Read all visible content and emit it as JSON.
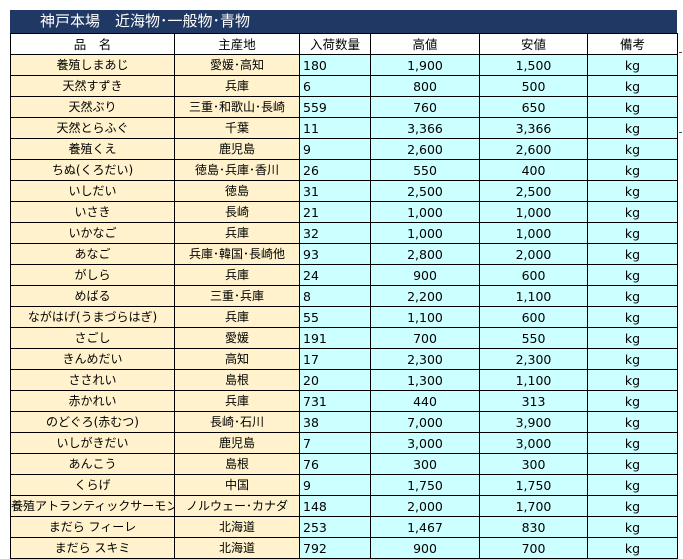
{
  "title": "神戸本場　近海物･一般物･青物",
  "headers": [
    "品　名",
    "主産地",
    "入荷数量",
    "高値",
    "安値",
    "備考"
  ],
  "rows": [
    [
      "養殖しまあじ",
      "愛媛･高知",
      "180",
      "1,900",
      "1,500",
      "kg"
    ],
    [
      "天然すずき",
      "兵庫",
      "6",
      "800",
      "500",
      "kg"
    ],
    [
      "天然ぶり",
      "三重･和歌山･長崎",
      "559",
      "760",
      "650",
      "kg"
    ],
    [
      "天然とらふぐ",
      "千葉",
      "11",
      "3,366",
      "3,366",
      "kg"
    ],
    [
      "養殖くえ",
      "鹿児島",
      "9",
      "2,600",
      "2,600",
      "kg"
    ],
    [
      "ちぬ(くろだい)",
      "徳島･兵庫･香川",
      "26",
      "550",
      "400",
      "kg"
    ],
    [
      "いしだい",
      "徳島",
      "31",
      "2,500",
      "2,500",
      "kg"
    ],
    [
      "いさき",
      "長崎",
      "21",
      "1,000",
      "1,000",
      "kg"
    ],
    [
      "いかなご",
      "兵庫",
      "32",
      "1,000",
      "1,000",
      "kg"
    ],
    [
      "あなご",
      "兵庫･韓国･長崎他",
      "93",
      "2,800",
      "2,000",
      "kg"
    ],
    [
      "がしら",
      "兵庫",
      "24",
      "900",
      "600",
      "kg"
    ],
    [
      "めばる",
      "三重･兵庫",
      "8",
      "2,200",
      "1,100",
      "kg"
    ],
    [
      "ながはげ(うまづらはぎ)",
      "兵庫",
      "55",
      "1,100",
      "600",
      "kg"
    ],
    [
      "さごし",
      "愛媛",
      "191",
      "700",
      "550",
      "kg"
    ],
    [
      "きんめだい",
      "高知",
      "17",
      "2,300",
      "2,300",
      "kg"
    ],
    [
      "さされい",
      "島根",
      "20",
      "1,300",
      "1,100",
      "kg"
    ],
    [
      "赤かれい",
      "兵庫",
      "731",
      "440",
      "313",
      "kg"
    ],
    [
      "のどぐろ(赤むつ)",
      "長崎･石川",
      "38",
      "7,000",
      "3,900",
      "kg"
    ],
    [
      "いしがきだい",
      "鹿児島",
      "7",
      "3,000",
      "3,000",
      "kg"
    ],
    [
      "あんこう",
      "島根",
      "76",
      "300",
      "300",
      "kg"
    ],
    [
      "くらげ",
      "中国",
      "9",
      "1,750",
      "1,750",
      "kg"
    ],
    [
      "養殖アトランティックサーモン",
      "ノルウェー･カナダ",
      "148",
      "2,000",
      "1,700",
      "kg"
    ],
    [
      "まだら フィーレ",
      "北海道",
      "253",
      "1,467",
      "830",
      "kg"
    ],
    [
      "まだら スキミ",
      "北海道",
      "792",
      "900",
      "700",
      "kg"
    ]
  ],
  "colors": {
    "title_bg": "#1f3864",
    "name_origin_bg": "#fff2cc",
    "value_bg": "#ccffff"
  }
}
